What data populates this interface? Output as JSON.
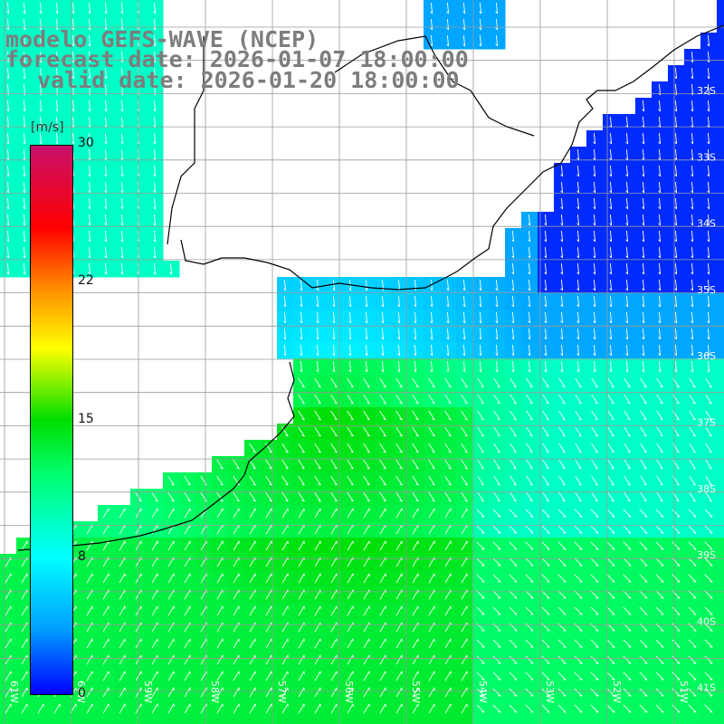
{
  "title": {
    "line1": "modelo GEFS-WAVE (NCEP)",
    "line2": "forecast date: 2026-01-07 18:00:00",
    "line3": "valid date: 2026-01-20 18:00:00"
  },
  "colorbar": {
    "unit": "[m/s]",
    "ticks": [
      "30",
      "22",
      "15",
      "8",
      "0"
    ],
    "colors": [
      "#0000ff",
      "#00a0ff",
      "#00ffff",
      "#00ff70",
      "#00dd00",
      "#ffff00",
      "#ff8c00",
      "#ff0000",
      "#c8106c"
    ]
  },
  "lat_labels": [
    "32S",
    "33S",
    "34S",
    "35S",
    "36S",
    "37S",
    "38S",
    "39S",
    "40S",
    "41S"
  ],
  "lon_labels": [
    "61W",
    "60W",
    "59W",
    "58W",
    "57W",
    "56W",
    "55W",
    "54W",
    "53W",
    "52W",
    "51W"
  ],
  "map": {
    "land_color": "#ffffff",
    "grid_color": "#9a9a9a",
    "coast_color": "#000000",
    "arrow_color": "#ffffff"
  }
}
